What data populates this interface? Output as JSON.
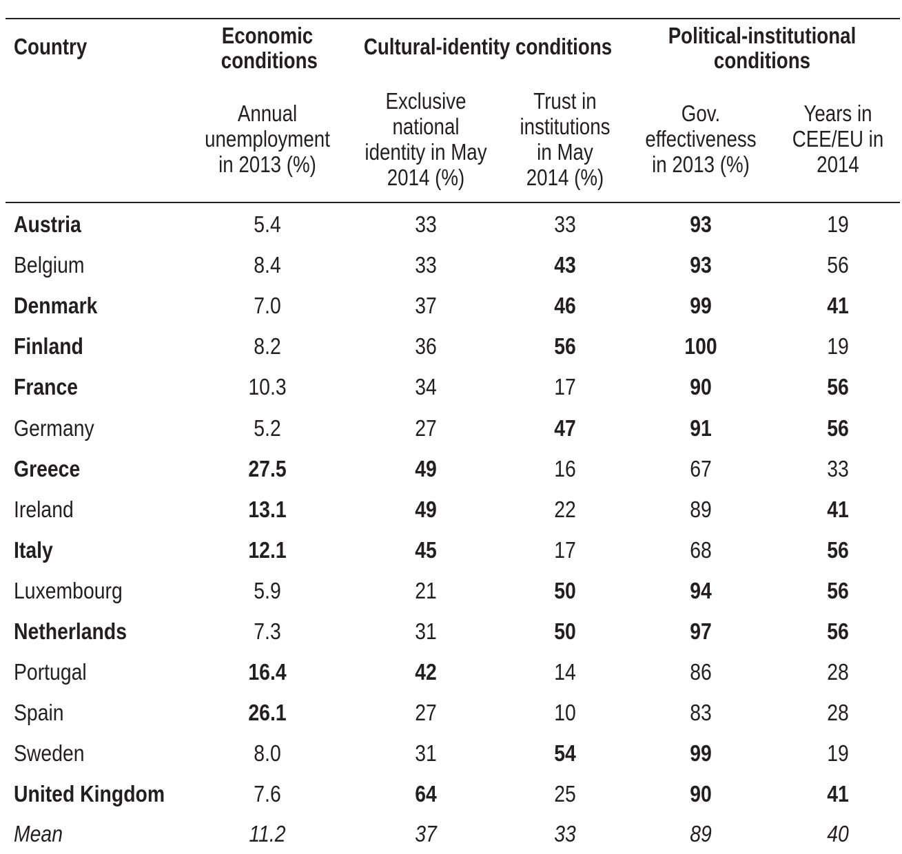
{
  "header": {
    "country": "Country",
    "groups": [
      {
        "label": "Economic\nconditions"
      },
      {
        "label": "Cultural-identity conditions"
      },
      {
        "label": "Political-institutional\nconditions"
      }
    ],
    "columns": [
      "Annual\nunemployment\nin 2013 (%)",
      "Exclusive\nnational\nidentity in May\n2014 (%)",
      "Trust in\ninstitutions\nin May\n2014 (%)",
      "Gov.\neffectiveness\nin 2013 (%)",
      "Years in\nCEE/EU in\n2014"
    ]
  },
  "rows": [
    {
      "country": "Austria",
      "country_bold": true,
      "values": [
        "5.4",
        "33",
        "33",
        "93",
        "19"
      ],
      "bold": [
        false,
        false,
        false,
        true,
        false
      ]
    },
    {
      "country": "Belgium",
      "country_bold": false,
      "values": [
        "8.4",
        "33",
        "43",
        "93",
        "56"
      ],
      "bold": [
        false,
        false,
        true,
        true,
        false
      ]
    },
    {
      "country": "Denmark",
      "country_bold": true,
      "values": [
        "7.0",
        "37",
        "46",
        "99",
        "41"
      ],
      "bold": [
        false,
        false,
        true,
        true,
        true
      ]
    },
    {
      "country": "Finland",
      "country_bold": true,
      "values": [
        "8.2",
        "36",
        "56",
        "100",
        "19"
      ],
      "bold": [
        false,
        false,
        true,
        true,
        false
      ]
    },
    {
      "country": "France",
      "country_bold": true,
      "values": [
        "10.3",
        "34",
        "17",
        "90",
        "56"
      ],
      "bold": [
        false,
        false,
        false,
        true,
        true
      ]
    },
    {
      "country": "Germany",
      "country_bold": false,
      "values": [
        "5.2",
        "27",
        "47",
        "91",
        "56"
      ],
      "bold": [
        false,
        false,
        true,
        true,
        true
      ]
    },
    {
      "country": "Greece",
      "country_bold": true,
      "values": [
        "27.5",
        "49",
        "16",
        "67",
        "33"
      ],
      "bold": [
        true,
        true,
        false,
        false,
        false
      ]
    },
    {
      "country": "Ireland",
      "country_bold": false,
      "values": [
        "13.1",
        "49",
        "22",
        "89",
        "41"
      ],
      "bold": [
        true,
        true,
        false,
        false,
        true
      ]
    },
    {
      "country": "Italy",
      "country_bold": true,
      "values": [
        "12.1",
        "45",
        "17",
        "68",
        "56"
      ],
      "bold": [
        true,
        true,
        false,
        false,
        true
      ]
    },
    {
      "country": "Luxembourg",
      "country_bold": false,
      "values": [
        "5.9",
        "21",
        "50",
        "94",
        "56"
      ],
      "bold": [
        false,
        false,
        true,
        true,
        true
      ]
    },
    {
      "country": "Netherlands",
      "country_bold": true,
      "values": [
        "7.3",
        "31",
        "50",
        "97",
        "56"
      ],
      "bold": [
        false,
        false,
        true,
        true,
        true
      ]
    },
    {
      "country": "Portugal",
      "country_bold": false,
      "values": [
        "16.4",
        "42",
        "14",
        "86",
        "28"
      ],
      "bold": [
        true,
        true,
        false,
        false,
        false
      ]
    },
    {
      "country": "Spain",
      "country_bold": false,
      "values": [
        "26.1",
        "27",
        "10",
        "83",
        "28"
      ],
      "bold": [
        true,
        false,
        false,
        false,
        false
      ]
    },
    {
      "country": "Sweden",
      "country_bold": false,
      "values": [
        "8.0",
        "31",
        "54",
        "99",
        "19"
      ],
      "bold": [
        false,
        false,
        true,
        true,
        false
      ]
    },
    {
      "country": "United Kingdom",
      "country_bold": true,
      "values": [
        "7.6",
        "64",
        "25",
        "90",
        "41"
      ],
      "bold": [
        false,
        true,
        false,
        true,
        true
      ]
    }
  ],
  "mean_row": {
    "label": "Mean",
    "values": [
      "11.2",
      "37",
      "33",
      "89",
      "40"
    ]
  }
}
